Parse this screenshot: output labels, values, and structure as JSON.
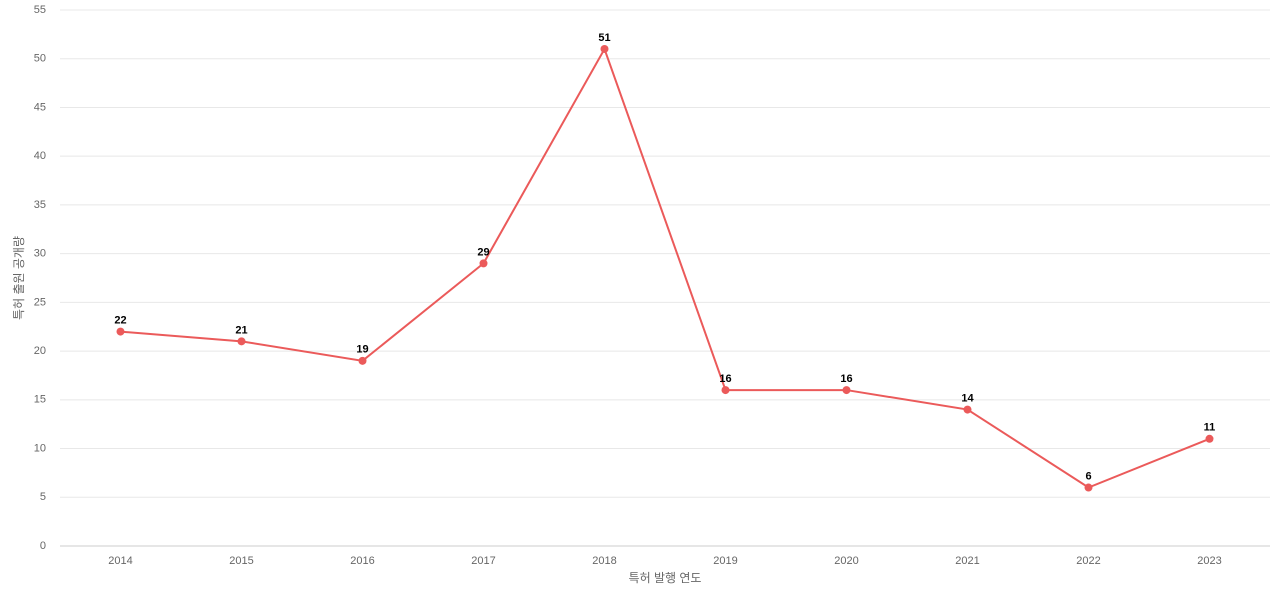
{
  "chart_data": {
    "type": "line",
    "x_label": "특허 발행 연도",
    "y_label": "특허 출원 공개량",
    "categories": [
      "2014",
      "2015",
      "2016",
      "2017",
      "2018",
      "2019",
      "2020",
      "2021",
      "2022",
      "2023"
    ],
    "series": [
      {
        "color": "#eb5a5a",
        "values": [
          22,
          21,
          19,
          29,
          51,
          16,
          16,
          14,
          6,
          11
        ]
      }
    ],
    "ylim": [
      0,
      55
    ],
    "yticks": [
      0,
      5,
      10,
      15,
      20,
      25,
      30,
      35,
      40,
      45,
      50,
      55
    ],
    "grid": true
  }
}
